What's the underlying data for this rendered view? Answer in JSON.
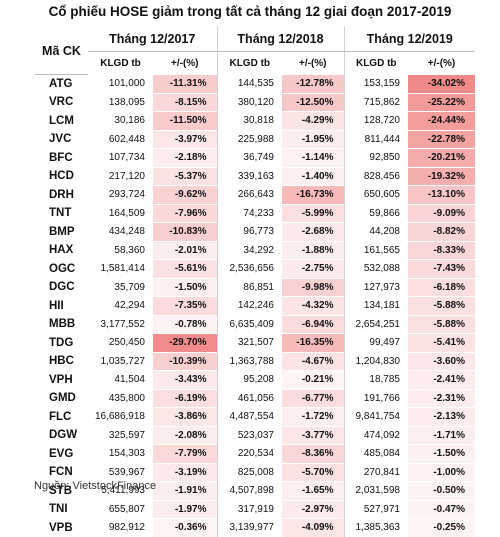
{
  "title": "Cổ phiếu HOSE giảm trong tất cả tháng 12 giai đoạn 2017-2019",
  "headers": {
    "code": "Mã CK",
    "periods": [
      "Tháng 12/2017",
      "Tháng 12/2018",
      "Tháng 12/2019"
    ],
    "volume": "KLGD tb",
    "change": "+/-(%)"
  },
  "rows": [
    {
      "code": "ATG",
      "v1": "101,000",
      "c1": "-11.31%",
      "v2": "144,535",
      "c2": "-12.78%",
      "v3": "153,159",
      "c3": "-34.02%"
    },
    {
      "code": "VRC",
      "v1": "138,095",
      "c1": "-8.15%",
      "v2": "380,120",
      "c2": "-12.50%",
      "v3": "715,862",
      "c3": "-25.22%"
    },
    {
      "code": "LCM",
      "v1": "30,186",
      "c1": "-11.50%",
      "v2": "30,818",
      "c2": "-4.29%",
      "v3": "128,720",
      "c3": "-24.44%"
    },
    {
      "code": "JVC",
      "v1": "602,448",
      "c1": "-3.97%",
      "v2": "225,988",
      "c2": "-1.95%",
      "v3": "811,444",
      "c3": "-22.78%"
    },
    {
      "code": "BFC",
      "v1": "107,734",
      "c1": "-2.18%",
      "v2": "36,749",
      "c2": "-1.14%",
      "v3": "92,850",
      "c3": "-20.21%"
    },
    {
      "code": "HCD",
      "v1": "217,120",
      "c1": "-5.37%",
      "v2": "339,163",
      "c2": "-1.40%",
      "v3": "828,456",
      "c3": "-19.32%"
    },
    {
      "code": "DRH",
      "v1": "293,724",
      "c1": "-9.62%",
      "v2": "266,643",
      "c2": "-16.73%",
      "v3": "650,605",
      "c3": "-13.10%"
    },
    {
      "code": "TNT",
      "v1": "164,509",
      "c1": "-7.96%",
      "v2": "74,233",
      "c2": "-5.99%",
      "v3": "59,866",
      "c3": "-9.09%"
    },
    {
      "code": "BMP",
      "v1": "434,248",
      "c1": "-10.83%",
      "v2": "96,773",
      "c2": "-2.68%",
      "v3": "44,208",
      "c3": "-8.82%"
    },
    {
      "code": "HAX",
      "v1": "58,360",
      "c1": "-2.01%",
      "v2": "34,292",
      "c2": "-1.88%",
      "v3": "161,565",
      "c3": "-8.33%"
    },
    {
      "code": "OGC",
      "v1": "1,581,414",
      "c1": "-5.61%",
      "v2": "2,536,656",
      "c2": "-2.75%",
      "v3": "532,088",
      "c3": "-7.43%"
    },
    {
      "code": "DGC",
      "v1": "35,709",
      "c1": "-1.50%",
      "v2": "86,851",
      "c2": "-9.98%",
      "v3": "127,973",
      "c3": "-6.18%"
    },
    {
      "code": "HII",
      "v1": "42,294",
      "c1": "-7.35%",
      "v2": "142,246",
      "c2": "-4.32%",
      "v3": "134,181",
      "c3": "-5.88%"
    },
    {
      "code": "MBB",
      "v1": "3,177,552",
      "c1": "-0.78%",
      "v2": "6,635,409",
      "c2": "-6.94%",
      "v3": "2,654,251",
      "c3": "-5.88%"
    },
    {
      "code": "TDG",
      "v1": "250,450",
      "c1": "-29.70%",
      "v2": "321,507",
      "c2": "-16.35%",
      "v3": "99,497",
      "c3": "-5.41%"
    },
    {
      "code": "HBC",
      "v1": "1,035,727",
      "c1": "-10.39%",
      "v2": "1,363,788",
      "c2": "-4.67%",
      "v3": "1,204,830",
      "c3": "-3.60%"
    },
    {
      "code": "VPH",
      "v1": "41,504",
      "c1": "-3.43%",
      "v2": "95,208",
      "c2": "-0.21%",
      "v3": "18,785",
      "c3": "-2.41%"
    },
    {
      "code": "GMD",
      "v1": "435,800",
      "c1": "-6.19%",
      "v2": "461,056",
      "c2": "-6.77%",
      "v3": "191,766",
      "c3": "-2.31%"
    },
    {
      "code": "FLC",
      "v1": "16,686,918",
      "c1": "-3.86%",
      "v2": "4,487,554",
      "c2": "-1.72%",
      "v3": "9,841,754",
      "c3": "-2.13%"
    },
    {
      "code": "DGW",
      "v1": "325,597",
      "c1": "-2.08%",
      "v2": "523,037",
      "c2": "-3.77%",
      "v3": "474,092",
      "c3": "-1.71%"
    },
    {
      "code": "EVG",
      "v1": "154,303",
      "c1": "-7.79%",
      "v2": "220,534",
      "c2": "-8.36%",
      "v3": "485,084",
      "c3": "-1.50%"
    },
    {
      "code": "FCN",
      "v1": "539,967",
      "c1": "-3.19%",
      "v2": "825,008",
      "c2": "-5.70%",
      "v3": "270,841",
      "c3": "-1.00%"
    },
    {
      "code": "STB",
      "v1": "5,411,993",
      "c1": "-1.91%",
      "v2": "4,507,898",
      "c2": "-1.65%",
      "v3": "2,031,598",
      "c3": "-0.50%"
    },
    {
      "code": "TNI",
      "v1": "655,807",
      "c1": "-1.97%",
      "v2": "317,919",
      "c2": "-2.97%",
      "v3": "527,971",
      "c3": "-0.47%"
    },
    {
      "code": "VPB",
      "v1": "982,912",
      "c1": "-0.36%",
      "v2": "3,139,977",
      "c2": "-4.09%",
      "v3": "1,385,363",
      "c3": "-0.25%"
    }
  ],
  "heat_color": "#f08080",
  "source": "Nguồn: VietstockFinance"
}
